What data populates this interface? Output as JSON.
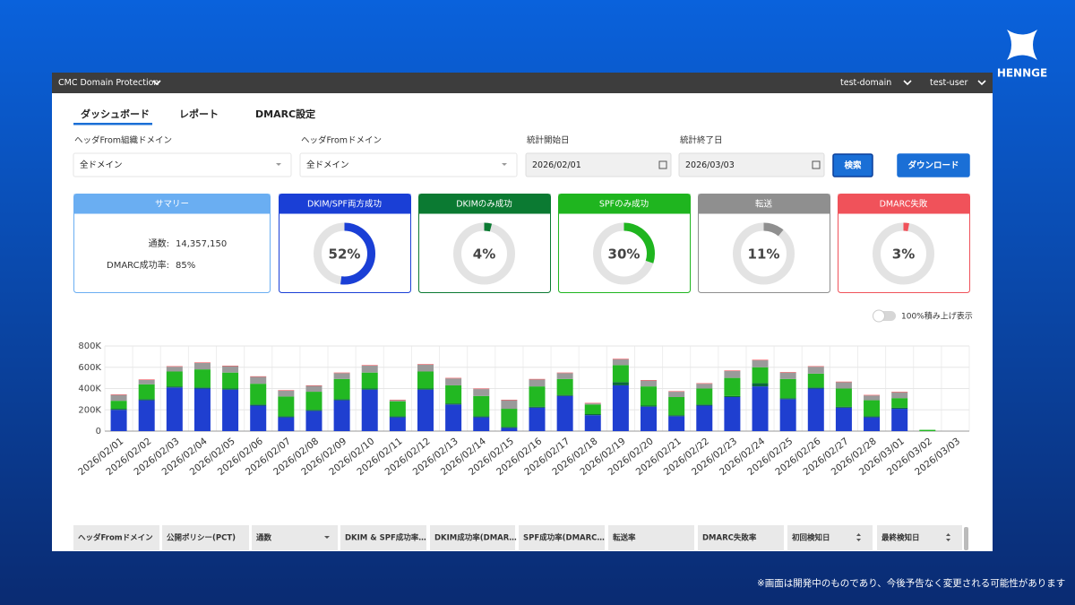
{
  "header": {
    "brand": "HENNGE",
    "app": "CMC Domain Protection",
    "domain": "test-domain",
    "user": "test-user"
  },
  "tabs": [
    "ダッシュボード",
    "レポート",
    "DMARC設定"
  ],
  "filters": [
    {
      "label": "ヘッダFrom組織ドメイン",
      "value": "全ドメイン"
    },
    {
      "label": "ヘッダFromドメイン",
      "value": "全ドメイン"
    },
    {
      "label": "統計開始日",
      "value": "2026/02/01"
    },
    {
      "label": "統計終了日",
      "value": "2026/03/03"
    }
  ],
  "buttons": [
    "検索",
    "ダウンロード"
  ],
  "summary": {
    "title": "サマリー",
    "rows": [
      {
        "label": "通数:",
        "value": "14,357,150"
      },
      {
        "label": "DMARC成功率:",
        "value": "85%"
      }
    ]
  },
  "cards": [
    {
      "title": "DKIM/SPF両方成功",
      "color": "#1a3fd6",
      "value": 52,
      "value_label": "52%"
    },
    {
      "title": "DKIMのみ成功",
      "color": "#0b7a32",
      "value": 4,
      "value_label": "4%"
    },
    {
      "title": "SPFのみ成功",
      "color": "#1fb51f",
      "value": 30,
      "value_label": "30%"
    },
    {
      "title": "転送",
      "color": "#8f8f8f",
      "value": 11,
      "value_label": "11%"
    },
    {
      "title": "DMARC失敗",
      "color": "#f0525a",
      "value": 3,
      "value_label": "3%"
    }
  ],
  "toggle_label": "100%積み上げ表示",
  "chart_data": {
    "type": "bar",
    "stacked": true,
    "grid": true,
    "categories": [
      "2026/02/01",
      "2026/02/02",
      "2026/02/03",
      "2026/02/04",
      "2026/02/05",
      "2026/02/06",
      "2026/02/07",
      "2026/02/08",
      "2026/02/09",
      "2026/02/10",
      "2026/02/11",
      "2026/02/12",
      "2026/02/13",
      "2026/02/14",
      "2026/02/15",
      "2026/02/16",
      "2026/02/17",
      "2026/02/18",
      "2026/02/19",
      "2026/02/20",
      "2026/02/21",
      "2026/02/22",
      "2026/02/23",
      "2026/02/24",
      "2026/02/25",
      "2026/02/26",
      "2026/02/27",
      "2026/02/28",
      "2026/03/01",
      "2026/03/02",
      "2026/03/03"
    ],
    "series": [
      {
        "color": "#1f3fd0",
        "values": [
          200000,
          290000,
          410000,
          400000,
          390000,
          240000,
          130000,
          190000,
          290000,
          390000,
          130000,
          390000,
          250000,
          130000,
          30000,
          220000,
          330000,
          150000,
          430000,
          230000,
          140000,
          240000,
          320000,
          420000,
          300000,
          400000,
          220000,
          130000,
          210000,
          0,
          0
        ]
      },
      {
        "color": "#0b6a3a",
        "values": [
          10000,
          10000,
          10000,
          10000,
          10000,
          10000,
          10000,
          10000,
          10000,
          10000,
          10000,
          10000,
          10000,
          10000,
          10000,
          10000,
          10000,
          10000,
          30000,
          10000,
          10000,
          10000,
          10000,
          30000,
          10000,
          10000,
          10000,
          10000,
          10000,
          0,
          0
        ]
      },
      {
        "color": "#22b822",
        "values": [
          75000,
          140000,
          140000,
          170000,
          150000,
          195000,
          185000,
          170000,
          190000,
          150000,
          140000,
          160000,
          170000,
          190000,
          170000,
          190000,
          150000,
          90000,
          160000,
          180000,
          170000,
          150000,
          170000,
          150000,
          180000,
          130000,
          170000,
          150000,
          90000,
          12000,
          0
        ]
      },
      {
        "color": "#9a9a9a",
        "values": [
          55000,
          40000,
          45000,
          60000,
          60000,
          65000,
          55000,
          55000,
          55000,
          65000,
          10000,
          65000,
          65000,
          65000,
          80000,
          65000,
          55000,
          10000,
          55000,
          55000,
          50000,
          45000,
          65000,
          65000,
          60000,
          65000,
          60000,
          45000,
          55000,
          0,
          0
        ]
      },
      {
        "color": "#f0525a",
        "values": [
          5000,
          5000,
          5000,
          5000,
          5000,
          5000,
          5000,
          5000,
          5000,
          5000,
          5000,
          5000,
          5000,
          5000,
          5000,
          5000,
          5000,
          5000,
          5000,
          5000,
          5000,
          5000,
          5000,
          5000,
          5000,
          5000,
          5000,
          5000,
          5000,
          0,
          0
        ]
      }
    ],
    "ylim": [
      0,
      800000
    ],
    "yticks": [
      {
        "value": 0,
        "label": "0"
      },
      {
        "value": 200000,
        "label": "200K"
      },
      {
        "value": 400000,
        "label": "400K"
      },
      {
        "value": 600000,
        "label": "600K"
      },
      {
        "value": 800000,
        "label": "800K"
      }
    ]
  },
  "table": {
    "columns": [
      "ヘッダFromドメイン",
      "公開ポリシー(PCT)",
      "通数",
      "DKIM & SPF成功率…",
      "DKIM成功率(DMAR…",
      "SPF成功率(DMARC…",
      "転送率",
      "DMARC失敗率",
      "初回検知日",
      "最終検知日"
    ]
  },
  "footnote": "※画面は開発中のものであり、今後予告なく変更される可能性があります"
}
